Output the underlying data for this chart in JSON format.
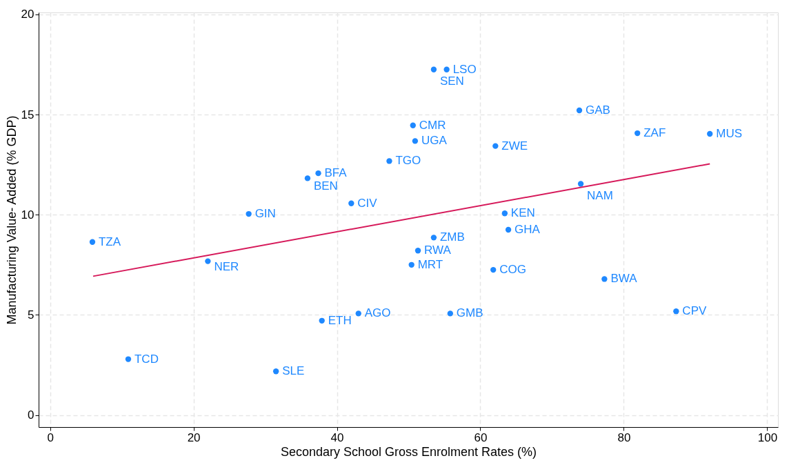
{
  "chart_data": {
    "type": "scatter",
    "xlabel": "Secondary School Gross Enrolment Rates (%)",
    "ylabel": "Manufacturing Value- Added (% GDP)",
    "xlim": [
      -1.6,
      101.5
    ],
    "ylim": [
      -0.6,
      20.1
    ],
    "xticks": [
      0,
      20,
      40,
      60,
      80,
      100
    ],
    "yticks": [
      0,
      5,
      10,
      15,
      20
    ],
    "grid": true,
    "series": [
      {
        "color": "#1e88ff",
        "marker": "circle",
        "x": [
          53.5,
          55.3,
          50.6,
          50.9,
          73.8,
          81.9,
          92.0,
          62.1,
          47.3,
          37.4,
          35.9,
          74.0,
          42.0,
          27.7,
          63.4,
          63.9,
          5.9,
          53.5,
          51.3,
          22.0,
          50.4,
          61.8,
          77.3,
          43.0,
          55.8,
          87.3,
          37.9,
          10.9,
          31.5
        ],
        "values": [
          17.25,
          17.25,
          14.46,
          13.68,
          15.21,
          14.07,
          14.04,
          13.43,
          12.68,
          12.07,
          11.82,
          11.54,
          10.57,
          10.04,
          10.07,
          9.25,
          8.64,
          8.86,
          8.21,
          7.68,
          7.5,
          7.25,
          6.79,
          5.07,
          5.07,
          5.18,
          4.71,
          2.79,
          2.18
        ],
        "value_labels": [
          "SEN",
          "LSO",
          "CMR",
          "UGA",
          "GAB",
          "ZAF",
          "MUS",
          "ZWE",
          "TGO",
          "BFA",
          "BEN",
          "NAM",
          "CIV",
          "GIN",
          "KEN",
          "GHA",
          "TZA",
          "ZMB",
          "RWA",
          "NER",
          "MRT",
          "COG",
          "BWA",
          "AGO",
          "GMB",
          "CPV",
          "ETH",
          "TCD",
          "SLE"
        ]
      },
      {
        "type": "line",
        "color": "#d6195a",
        "x": [
          6.0,
          92.0
        ],
        "values": [
          6.93,
          12.54
        ]
      }
    ]
  }
}
